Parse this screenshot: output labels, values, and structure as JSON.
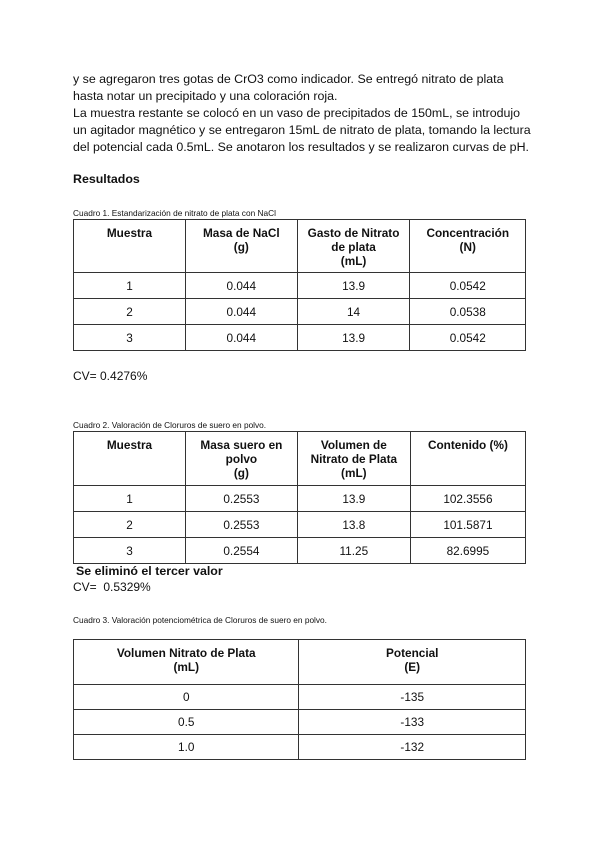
{
  "intro": {
    "line1": "y se agregaron tres gotas de CrO3 como indicador. Se entregó nitrato de plata hasta notar un precipitado y una coloración roja.",
    "line2": "La muestra restante se colocó en un vaso de precipitados de 150mL, se introdujo un agitador magnético y se entregaron 15mL de nitrato de plata, tomando la lectura del potencial cada 0.5mL. Se anotaron los resultados y se realizaron curvas de pH."
  },
  "results_heading": "Resultados",
  "table1": {
    "caption": "Cuadro 1. Estandarización de nitrato de plata con NaCl",
    "headers": [
      "Muestra",
      "Masa de NaCl\n(g)",
      "Gasto de Nitrato\nde plata\n(mL)",
      "Concentración\n(N)"
    ],
    "rows": [
      [
        "1",
        "0.044",
        "13.9",
        "0.0542"
      ],
      [
        "2",
        "0.044",
        "14",
        "0.0538"
      ],
      [
        "3",
        "0.044",
        "13.9",
        "0.0542"
      ]
    ],
    "cv": "CV= 0.4276%"
  },
  "table2": {
    "caption": "Cuadro 2. Valoración de Cloruros de suero en polvo.",
    "headers": [
      "Muestra",
      "Masa suero en\npolvo\n(g)",
      "Volumen de\nNitrato de Plata\n(mL)",
      "Contenido (%)"
    ],
    "rows": [
      [
        "1",
        "0.2553",
        "13.9",
        "102.3556"
      ],
      [
        "2",
        "0.2553",
        "13.8",
        "101.5871"
      ],
      [
        "3",
        "0.2554",
        "11.25",
        "82.6995"
      ]
    ],
    "note": "Se eliminó el tercer valor",
    "cv": "CV=  0.5329%"
  },
  "table3": {
    "caption": "Cuadro 3. Valoración potenciométrica de Cloruros de suero en polvo.",
    "headers": [
      "Volumen Nitrato de Plata\n(mL)",
      "Potencial\n(E)"
    ],
    "rows": [
      [
        "0",
        "-135"
      ],
      [
        "0.5",
        "-133"
      ],
      [
        "1.0",
        "-132"
      ]
    ]
  }
}
